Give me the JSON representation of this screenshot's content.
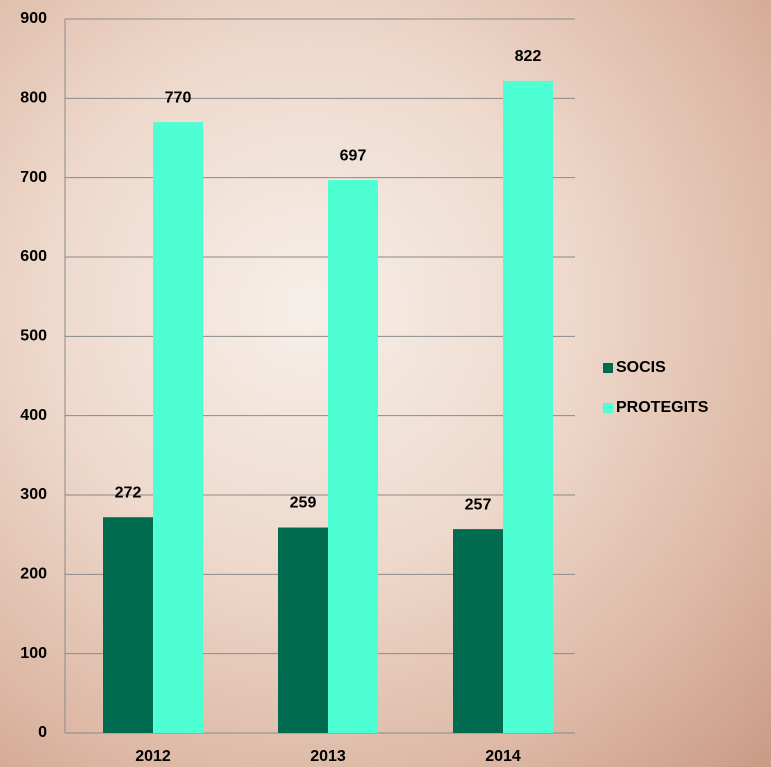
{
  "chart_data": {
    "type": "bar",
    "categories": [
      "2012",
      "2013",
      "2014"
    ],
    "series": [
      {
        "name": "SOCIS",
        "color": "#006b4f",
        "values": [
          272,
          259,
          257
        ]
      },
      {
        "name": "PROTEGITS",
        "color": "#4dffd2",
        "values": [
          770,
          697,
          822
        ]
      }
    ],
    "ylim": [
      0,
      900
    ],
    "yticks": [
      0,
      100,
      200,
      300,
      400,
      500,
      600,
      700,
      800,
      900
    ],
    "grid": true,
    "legend": "right"
  }
}
